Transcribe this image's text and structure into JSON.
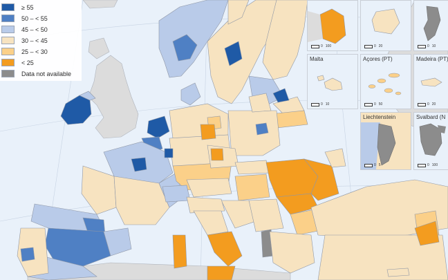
{
  "colors": {
    "sea": "#e9f1fa",
    "non_eu": "#dcdcdc",
    "border": "#8f97a6",
    "c55": "#1f5aa6",
    "c50": "#4f80c4",
    "c45": "#b9cbe9",
    "c30": "#f7e3c0",
    "c25": "#fbd089",
    "c0": "#f39c1f",
    "na": "#8c8c8c"
  },
  "legend": [
    {
      "label": "≥ 55",
      "color": "#1f5aa6"
    },
    {
      "label": "50 – < 55",
      "color": "#4f80c4"
    },
    {
      "label": "45 – < 50",
      "color": "#b9cbe9"
    },
    {
      "label": "30 – < 45",
      "color": "#f7e3c0"
    },
    {
      "label": "25 – < 30",
      "color": "#fbd089"
    },
    {
      "label": "< 25",
      "color": "#f39c1f"
    },
    {
      "label": "Data not available",
      "color": "#8c8c8c"
    }
  ],
  "insets": {
    "guyane": {
      "label": "",
      "scale": [
        "0",
        "100"
      ]
    },
    "reunion": {
      "label": "",
      "scale": [
        "0",
        "20"
      ]
    },
    "mayotte": {
      "label": "",
      "scale": [
        "0",
        "10"
      ]
    },
    "malta": {
      "label": "Malta",
      "scale": [
        "0",
        "10"
      ]
    },
    "acores": {
      "label": "Açores (PT)",
      "scale": [
        "0",
        "50"
      ]
    },
    "madeira": {
      "label": "Madeira (PT)",
      "scale": [
        "0",
        "20"
      ]
    },
    "liechtenstein": {
      "label": "Liechtenstein",
      "scale": [
        "0",
        "5"
      ]
    },
    "svalbard": {
      "label": "Svalbard (N",
      "scale": [
        "0",
        "100"
      ]
    }
  }
}
